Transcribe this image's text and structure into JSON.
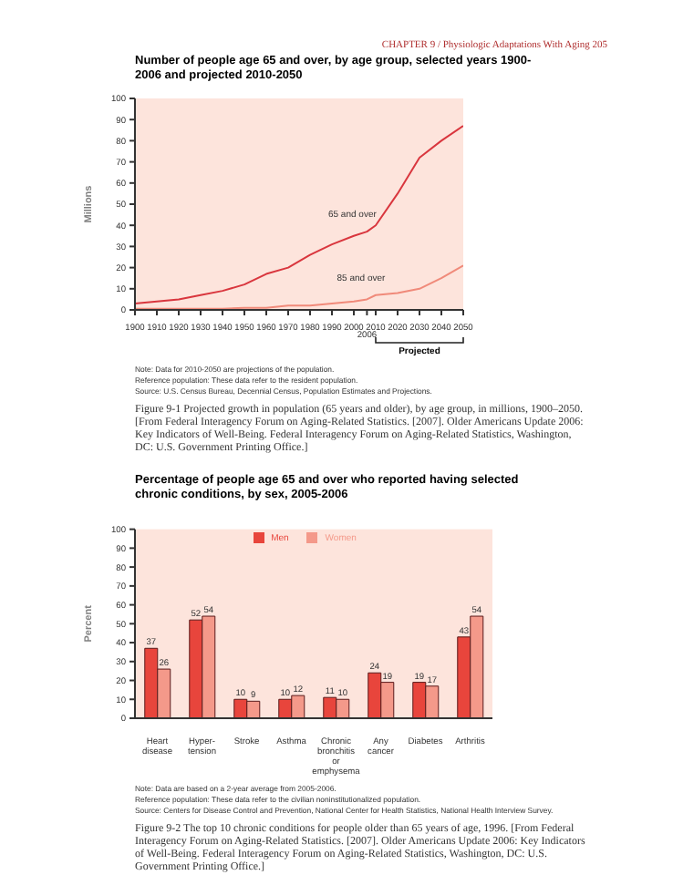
{
  "chart_data": [
    {
      "type": "line",
      "title": "Number of people age 65 and over, by age group, selected years 1900-2006 and projected 2010-2050",
      "ylabel": "Millions",
      "x": [
        1900,
        1910,
        1920,
        1930,
        1940,
        1950,
        1960,
        1970,
        1980,
        1990,
        2000,
        2006,
        2010,
        2020,
        2030,
        2040,
        2050
      ],
      "series": [
        {
          "name": "65 and over",
          "color": "#d9363e",
          "values": [
            3,
            4,
            5,
            7,
            9,
            12,
            17,
            20,
            26,
            31,
            35,
            37,
            40,
            55,
            72,
            80,
            87
          ]
        },
        {
          "name": "85 and over",
          "color": "#f08a7a",
          "values": [
            0.5,
            0.5,
            0.5,
            0.5,
            0.5,
            1,
            1,
            2,
            2,
            3,
            4,
            5,
            7,
            8,
            10,
            15,
            21
          ]
        }
      ],
      "xlim": [
        1900,
        2050
      ],
      "xticks": [
        1900,
        1910,
        1920,
        1930,
        1940,
        1950,
        1960,
        1970,
        1980,
        1990,
        2000,
        {
          "value": 2006,
          "label": null
        },
        2010,
        2020,
        2030,
        2040,
        2050
      ],
      "ylim": [
        0,
        100
      ],
      "yticks": [
        0,
        10,
        20,
        30,
        40,
        50,
        60,
        70,
        80,
        90,
        100
      ],
      "annotations": [
        "CHAPTER 9 / Physiologic Adaptations With Aging 205",
        "Projected",
        "2006",
        "Note: Data for 2010-2050 are projections of the population.",
        "Reference population: These data refer to the resident population.",
        "Source: U.S. Census Bureau, Decennial Census, Population Estimates and Projections.",
        "Figure 9-1 Projected growth in population (65 years and older), by age group, in millions, 1900–2050. [From Federal Interagency Forum on Aging-Related Statistics. [2007]. Older Americans Update 2006: Key Indicators of Well-Being. Federal Interagency Forum on Aging-Related Statistics, Washington, DC: U.S. Government Printing Office.]"
      ]
    },
    {
      "type": "bar",
      "title": "Percentage of people age 65 and over who reported having selected chronic conditions, by sex, 2005-2006",
      "ylabel": "Percent",
      "categories": [
        "Heart disease",
        "Hyper-tension",
        "Stroke",
        "Asthma",
        "Chronic bronchitis or emphysema",
        "Any cancer",
        "Diabetes",
        "Arthritis"
      ],
      "series": [
        {
          "name": "Men",
          "color": "#e8453c",
          "values": [
            37,
            52,
            10,
            10,
            11,
            24,
            19,
            43
          ]
        },
        {
          "name": "Women",
          "color": "#f4998a",
          "values": [
            26,
            54,
            9,
            12,
            10,
            19,
            17,
            54
          ]
        }
      ],
      "ylim": [
        0,
        100
      ],
      "yticks": [
        0,
        10,
        20,
        30,
        40,
        50,
        60,
        70,
        80,
        90,
        100
      ],
      "data_labels": true,
      "legend": "top",
      "annotations": [
        "Note: Data are based on a 2-year average from 2005-2006.",
        "Reference population: These data refer to the civilian noninstitutionalized population.",
        "Source: Centers for Disease Control and Prevention, National Center for Health Statistics, National Health Interview Survey.",
        "Figure 9-2 The top 10 chronic conditions for people older than 65 years of age, 1996. [From Federal Interagency Forum on Aging-Related Statistics. [2007]. Older Americans Update 2006: Key Indicators of Well-Being. Federal Interagency Forum on Aging-Related Statistics, Washington, DC: U.S. Government Printing Office.]"
      ]
    }
  ]
}
